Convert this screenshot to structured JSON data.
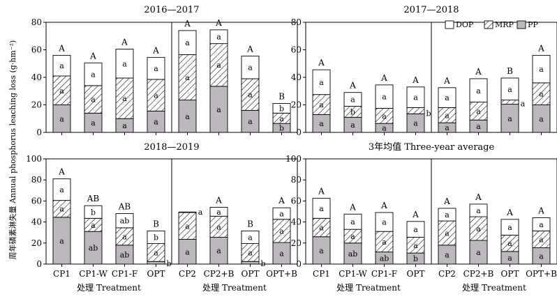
{
  "chart_data": {
    "type": "bar",
    "stacked": true,
    "ylabel": "周年磷素淋失量 Annual phosphorus leaching loss (g·hm⁻²)",
    "xlabel": "处理 Treatment",
    "ylim": [
      0,
      100
    ],
    "legend": {
      "placement": "top-right",
      "entries": [
        {
          "name": "DOP",
          "fill": "#ffffff"
        },
        {
          "name": "MRP",
          "fill": "hatch"
        },
        {
          "name": "PP",
          "fill": "#bdb8bd"
        }
      ]
    },
    "colors": {
      "PP": "#bdb8bd",
      "MRP_hatch": "#000000",
      "DOP": "#ffffff"
    },
    "periods": [
      "2016—2017",
      "2017—2018",
      "2018—2019",
      "3年均值 Three-year average"
    ],
    "panels": [
      {
        "period": "2016—2017",
        "ylim": [
          0,
          80
        ],
        "yticks": [
          0,
          20,
          40,
          60,
          80
        ],
        "categories": [
          "CP1",
          "CP1-W",
          "CP1-F",
          "OPT"
        ],
        "PP": [
          20,
          14,
          10,
          15.5
        ],
        "MRP": [
          21,
          20,
          29.5,
          23
        ],
        "DOP": [
          15,
          16.5,
          21,
          16
        ],
        "total_letters": [
          "A",
          "A",
          "A",
          "A"
        ],
        "DOP_letters": [
          "a",
          "a",
          "a",
          "a"
        ],
        "MRP_letters": [
          "a",
          "a",
          "a",
          "a"
        ],
        "PP_letters": [
          "a",
          "a",
          "a",
          "a"
        ]
      },
      {
        "period": "2016—2017",
        "ylim": [
          0,
          80
        ],
        "yticks": [
          0,
          20,
          40,
          60,
          80
        ],
        "categories": [
          "CP2",
          "CP2+B",
          "OPT",
          "OPT+B"
        ],
        "PP": [
          23.5,
          33.5,
          16,
          6.5
        ],
        "MRP": [
          33,
          31,
          23,
          7.5
        ],
        "DOP": [
          17.5,
          10,
          16.5,
          7
        ],
        "total_letters": [
          "A",
          "A",
          "A",
          "B"
        ],
        "DOP_letters": [
          "a",
          "a",
          "a",
          "b"
        ],
        "MRP_letters": [
          "a",
          "a",
          "a",
          "a"
        ],
        "PP_letters": [
          "a",
          "a",
          "a",
          "b"
        ]
      },
      {
        "period": "2017—2018",
        "ylim": [
          0,
          80
        ],
        "yticks": [
          0,
          20,
          40,
          60,
          80
        ],
        "categories": [
          "CP1",
          "CP1-W",
          "CP1-F",
          "OPT"
        ],
        "PP": [
          13,
          11,
          6.5,
          13.5
        ],
        "MRP": [
          14.5,
          8,
          11,
          4.5
        ],
        "DOP": [
          18,
          10,
          17,
          15
        ],
        "total_letters": [
          "A",
          "A",
          "A",
          "A"
        ],
        "DOP_letters": [
          "a",
          "a",
          "a",
          "a"
        ],
        "MRP_letters": [
          "a",
          "b",
          "a",
          "b"
        ],
        "PP_letters": [
          "a",
          "a",
          "a",
          "a"
        ]
      },
      {
        "period": "2017—2018",
        "ylim": [
          0,
          80
        ],
        "yticks": [
          0,
          20,
          40,
          60,
          80
        ],
        "categories": [
          "CP2",
          "CP2+B",
          "OPT",
          "OPT+B"
        ],
        "PP": [
          7,
          9,
          20.5,
          20
        ],
        "MRP": [
          11,
          13,
          3,
          16
        ],
        "DOP": [
          14.5,
          17,
          16,
          20
        ],
        "total_letters": [
          "A",
          "A",
          "B",
          "A"
        ],
        "DOP_letters": [
          "a",
          "a",
          "a",
          "a"
        ],
        "MRP_letters": [
          "a",
          "a",
          "a",
          "a"
        ],
        "PP_letters": [
          "a",
          "a",
          "a",
          "a"
        ]
      },
      {
        "period": "2018—2019",
        "ylim": [
          0,
          100
        ],
        "yticks": [
          0,
          20,
          40,
          60,
          80,
          100
        ],
        "categories": [
          "CP1",
          "CP1-W",
          "CP1-F",
          "OPT"
        ],
        "PP": [
          44.5,
          31,
          18,
          2.5
        ],
        "MRP": [
          16,
          12.5,
          16.5,
          17
        ],
        "DOP": [
          20.5,
          12,
          13.5,
          12
        ],
        "total_letters": [
          "A",
          "AB",
          "AB",
          "B"
        ],
        "DOP_letters": [
          "a",
          "b",
          "ab",
          "b"
        ],
        "MRP_letters": [
          "a",
          "a",
          "a",
          "a"
        ],
        "PP_letters": [
          "a",
          "ab",
          "ab",
          "b"
        ]
      },
      {
        "period": "2018—2019",
        "ylim": [
          0,
          100
        ],
        "yticks": [
          0,
          20,
          40,
          60,
          80,
          100
        ],
        "categories": [
          "CP2",
          "CP2+B",
          "OPT",
          "OPT+B"
        ],
        "PP": [
          23.5,
          25.5,
          2.5,
          20.5
        ],
        "MRP": [
          25.5,
          20,
          17,
          22
        ],
        "DOP": [
          0.5,
          8.5,
          12,
          11
        ],
        "total_letters": [
          "",
          "A",
          "B",
          "A"
        ],
        "DOP_letters": [
          "a",
          "a",
          "a",
          "a"
        ],
        "MRP_letters": [
          "a",
          "a",
          "a",
          "a"
        ],
        "PP_letters": [
          "a",
          "a",
          "b",
          "a"
        ]
      },
      {
        "period": "3年均值 Three-year average",
        "ylim": [
          0,
          100
        ],
        "yticks": [
          0,
          20,
          40,
          60,
          80,
          100
        ],
        "categories": [
          "CP1",
          "CP1-W",
          "CP1-F",
          "OPT"
        ],
        "PP": [
          26,
          20,
          11.5,
          10.5
        ],
        "MRP": [
          17.5,
          13,
          19.5,
          15
        ],
        "DOP": [
          19,
          14.5,
          18,
          15
        ],
        "total_letters": [
          "A",
          "A",
          "A",
          "A"
        ],
        "DOP_letters": [
          "a",
          "a",
          "a",
          "a"
        ],
        "MRP_letters": [
          "a",
          "a",
          "a",
          "a"
        ],
        "PP_letters": [
          "a",
          "ab",
          "ab",
          "b"
        ]
      },
      {
        "period": "3年均值 Three-year average",
        "ylim": [
          0,
          100
        ],
        "yticks": [
          0,
          20,
          40,
          60,
          80,
          100
        ],
        "categories": [
          "CP2",
          "CP2+B",
          "OPT",
          "OPT+B"
        ],
        "PP": [
          18,
          22.5,
          12,
          15.5
        ],
        "MRP": [
          23,
          22.5,
          15.5,
          16
        ],
        "DOP": [
          12,
          12,
          15,
          12.5
        ],
        "total_letters": [
          "A",
          "A",
          "A",
          "A"
        ],
        "DOP_letters": [
          "a",
          "a",
          "a",
          "a"
        ],
        "MRP_letters": [
          "a",
          "a",
          "a",
          "a"
        ],
        "PP_letters": [
          "a",
          "a",
          "a",
          "a"
        ]
      }
    ]
  }
}
